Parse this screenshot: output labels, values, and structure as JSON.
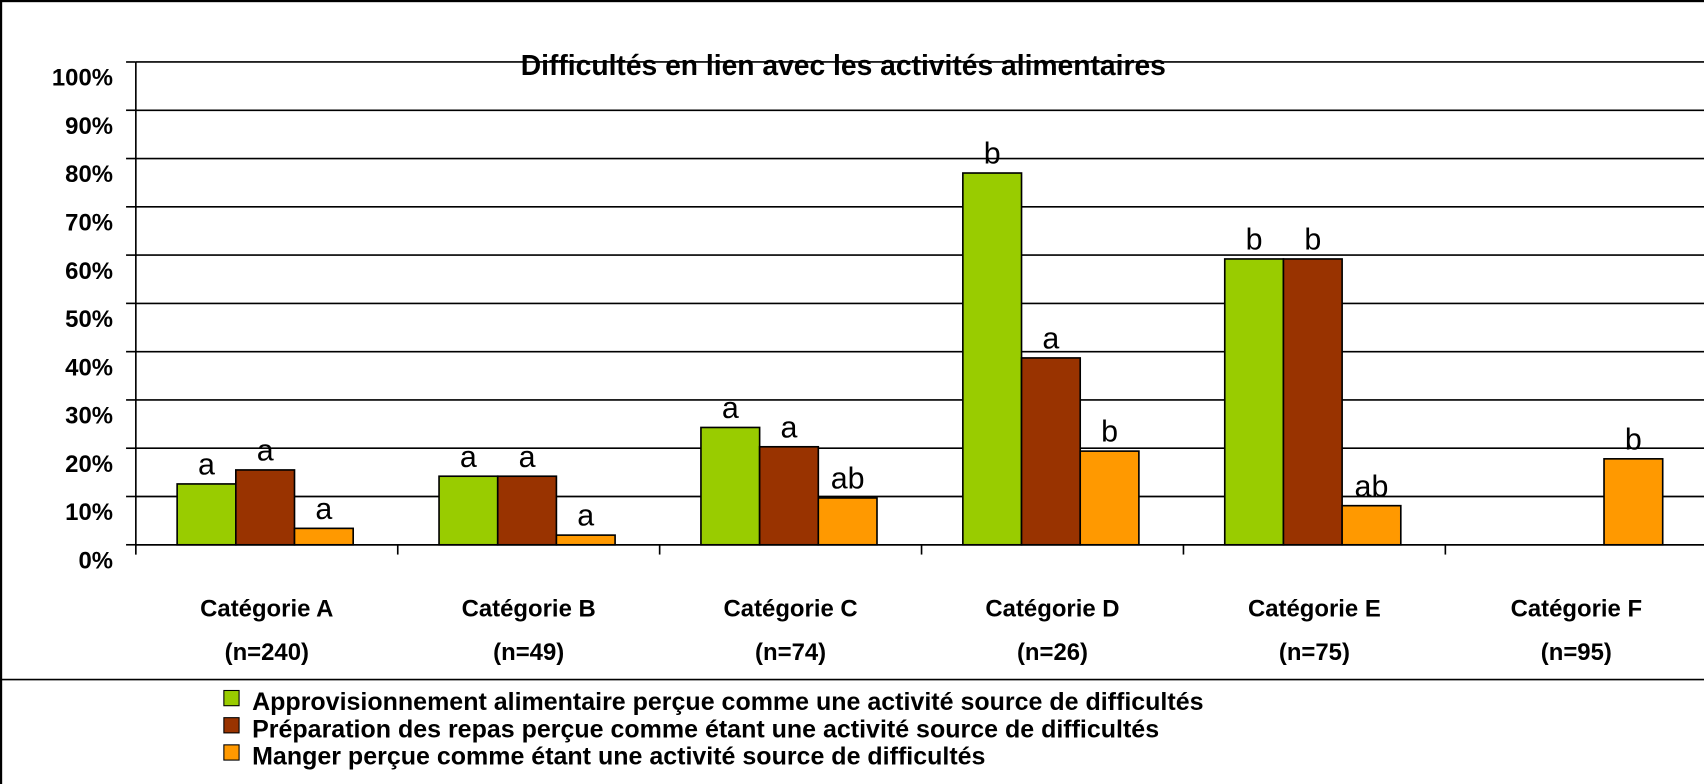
{
  "chart_data": {
    "type": "bar",
    "title": "Difficultés en lien avec les activités alimentaires",
    "categories": [
      "Catégorie A",
      "Catégorie B",
      "Catégorie C",
      "Catégorie D",
      "Catégorie E",
      "Catégorie F"
    ],
    "category_sublabels": [
      "(n=240)",
      "(n=49)",
      "(n=74)",
      "(n=26)",
      "(n=75)",
      "(n=95)"
    ],
    "series": [
      {
        "name": "Approvisionnement alimentaire perçue comme une activité source de difficultés",
        "color": "#99cc00",
        "values": [
          12.6,
          14.2,
          24.3,
          77,
          59.2,
          null
        ],
        "letters": [
          "a",
          "a",
          "a",
          "b",
          "b",
          null
        ]
      },
      {
        "name": "Préparation des repas perçue comme étant une activité source de difficultés",
        "color": "#993300",
        "values": [
          15.5,
          14.2,
          20.3,
          38.7,
          59.2,
          null
        ],
        "letters": [
          "a",
          "a",
          "a",
          "a",
          "b",
          null
        ]
      },
      {
        "name": "Manger perçue comme étant une activité source de difficultés",
        "color": "#ff9900",
        "values": [
          3.4,
          2.0,
          9.7,
          19.4,
          8.1,
          17.8
        ],
        "letters": [
          "a",
          "a",
          "ab",
          "b",
          "ab",
          "b"
        ]
      }
    ],
    "ylim": [
      0,
      100
    ],
    "yticks": [
      {
        "value": 0,
        "label": "0%"
      },
      {
        "value": 10,
        "label": "10%"
      },
      {
        "value": 20,
        "label": "20%"
      },
      {
        "value": 30,
        "label": "30%"
      },
      {
        "value": 40,
        "label": "40%"
      },
      {
        "value": 50,
        "label": "50%"
      },
      {
        "value": 60,
        "label": "60%"
      },
      {
        "value": 70,
        "label": "70%"
      },
      {
        "value": 80,
        "label": "80%"
      },
      {
        "value": 90,
        "label": "90%"
      },
      {
        "value": 100,
        "label": "100%"
      }
    ],
    "grid": true
  }
}
